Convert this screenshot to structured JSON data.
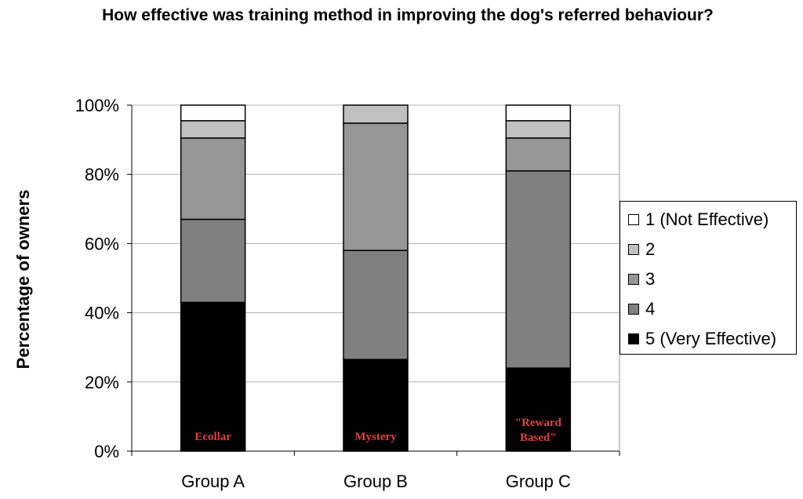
{
  "chart_data": {
    "type": "bar",
    "stacked": true,
    "title": "How effective was training method in improving the dog's referred behaviour?",
    "ylabel": "Percentage of owners",
    "xlabel": "",
    "ylim": [
      0,
      100
    ],
    "yticks": [
      "0%",
      "20%",
      "40%",
      "60%",
      "80%",
      "100%"
    ],
    "ytick_values": [
      0,
      20,
      40,
      60,
      80,
      100
    ],
    "categories": [
      "Group A",
      "Group B",
      "Group C"
    ],
    "bar_annotations": [
      [
        "Ecollar"
      ],
      [
        "Mystery"
      ],
      [
        "\"Reward",
        "Based\""
      ]
    ],
    "grid": true,
    "legend_position": "right",
    "series": [
      {
        "name": "5 (Very Effective)",
        "color": "#000000",
        "values": [
          43,
          26.5,
          24
        ]
      },
      {
        "name": "4",
        "color": "#808080",
        "values": [
          24,
          31.5,
          57
        ]
      },
      {
        "name": "3",
        "color": "#969696",
        "values": [
          23.5,
          36.8,
          9.5
        ]
      },
      {
        "name": "2",
        "color": "#c0c0c0",
        "values": [
          5,
          5.2,
          5
        ]
      },
      {
        "name": "1 (Not Effective)",
        "color": "#ffffff",
        "values": [
          4.5,
          0,
          4.5
        ]
      }
    ],
    "legend_order": [
      "1 (Not Effective)",
      "2",
      "3",
      "4",
      "5 (Very Effective)"
    ]
  }
}
